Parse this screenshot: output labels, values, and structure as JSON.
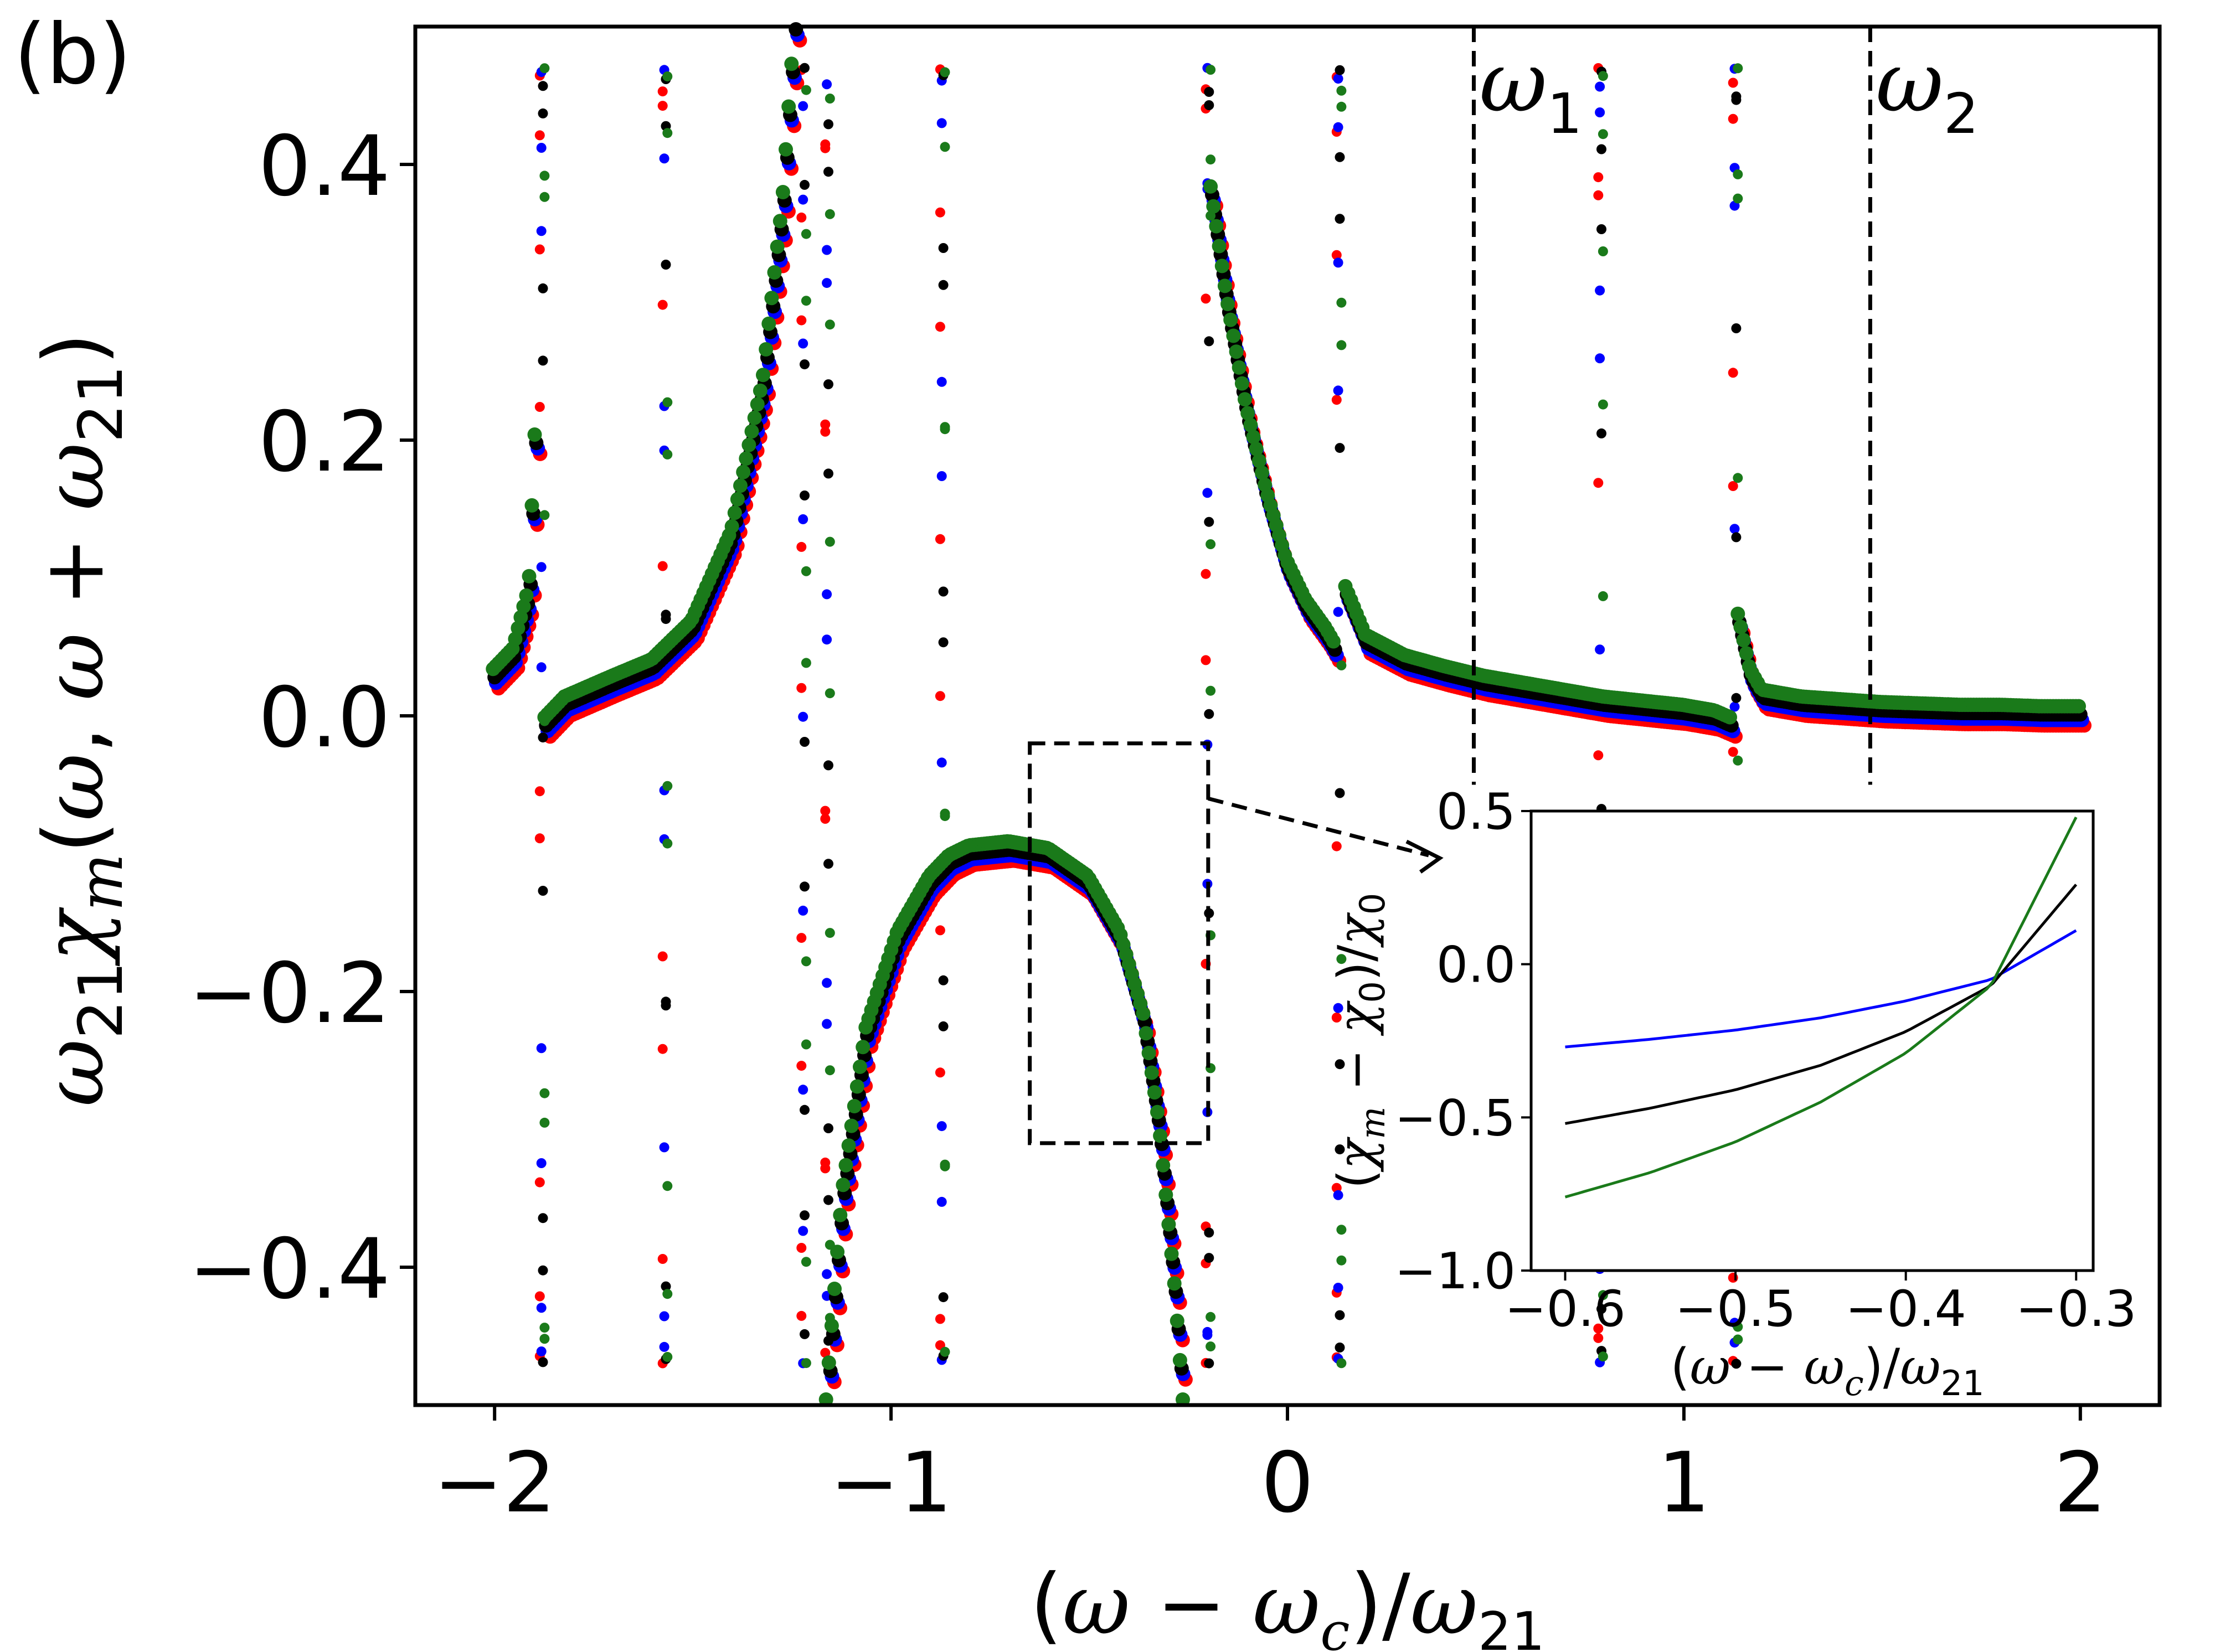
{
  "panel_label": "(b)",
  "chart_data": [
    {
      "type": "scatter",
      "role": "main",
      "xlabel": "(ω − ω_c)/ω_21",
      "ylabel": "ω_21 χ_m(ω, ω + ω_21)",
      "xlim": [
        -2.2,
        2.2
      ],
      "ylim": [
        -0.5,
        0.5
      ],
      "xticks": [
        -2,
        -1,
        0,
        1,
        2
      ],
      "xtick_labels": [
        "−2",
        "−1",
        "0",
        "1",
        "2"
      ],
      "yticks": [
        -0.4,
        -0.2,
        0.0,
        0.2,
        0.4
      ],
      "ytick_labels": [
        "−0.4",
        "−0.2",
        "0.0",
        "0.2",
        "0.4"
      ],
      "vlines": [
        {
          "x": 0.47,
          "label": "ω",
          "sub": "1",
          "style": "dashed"
        },
        {
          "x": 1.47,
          "label": "ω",
          "sub": "2",
          "style": "dashed"
        }
      ],
      "zoom_box": {
        "x": [
          -0.65,
          -0.2
        ],
        "y": [
          -0.31,
          -0.02
        ]
      },
      "series": [
        {
          "name": "red",
          "color": "#ff0000",
          "offset": -0.01,
          "shift": 0.01
        },
        {
          "name": "blue",
          "color": "#0000ff",
          "offset": -0.006,
          "shift": 0.004
        },
        {
          "name": "black",
          "color": "#000000",
          "offset": -0.002,
          "shift": 0.0
        },
        {
          "name": "green",
          "color": "#1a7a1a",
          "offset": 0.004,
          "shift": -0.004
        }
      ],
      "resonances": [
        -1.88,
        -1.57,
        -1.22,
        -1.16,
        -0.87,
        -0.2,
        0.13,
        0.79,
        1.13
      ],
      "segments": [
        {
          "x": [
            -2.0,
            -1.95,
            -1.91,
            -1.895
          ],
          "y": [
            0.03,
            0.045,
            0.09,
            0.2
          ]
        },
        {
          "x": [
            -1.87,
            -1.82,
            -1.7,
            -1.6,
            -1.5,
            -1.4,
            -1.32,
            -1.27,
            -1.24
          ],
          "y": [
            -0.005,
            0.01,
            0.025,
            0.037,
            0.065,
            0.13,
            0.24,
            0.37,
            0.5
          ]
        },
        {
          "x": [
            -1.16,
            -1.12,
            -1.06,
            -0.98,
            -0.9,
            -0.85,
            -0.8,
            -0.7,
            -0.6,
            -0.5,
            -0.42,
            -0.36,
            -0.32,
            -0.28,
            -0.26
          ],
          "y": [
            -0.5,
            -0.35,
            -0.23,
            -0.16,
            -0.12,
            -0.105,
            -0.098,
            -0.095,
            -0.1,
            -0.12,
            -0.16,
            -0.22,
            -0.3,
            -0.42,
            -0.5
          ]
        },
        {
          "x": [
            -0.19,
            -0.15,
            -0.1,
            -0.05,
            0.0,
            0.05,
            0.1,
            0.12
          ],
          "y": [
            0.38,
            0.3,
            0.22,
            0.16,
            0.11,
            0.08,
            0.06,
            0.05
          ]
        },
        {
          "x": [
            0.15,
            0.2,
            0.3,
            0.4,
            0.5,
            0.6,
            0.7,
            0.8,
            0.9,
            1.0,
            1.08,
            1.12
          ],
          "y": [
            0.09,
            0.055,
            0.04,
            0.032,
            0.025,
            0.02,
            0.015,
            0.01,
            0.007,
            0.004,
            0.0,
            -0.005
          ]
        },
        {
          "x": [
            1.14,
            1.17,
            1.2,
            1.3,
            1.4,
            1.5,
            1.6,
            1.7,
            1.8,
            1.9,
            2.0
          ],
          "y": [
            0.07,
            0.03,
            0.015,
            0.01,
            0.008,
            0.006,
            0.005,
            0.004,
            0.004,
            0.003,
            0.003
          ]
        }
      ]
    },
    {
      "type": "line",
      "role": "inset",
      "xlabel": "(ω − ω_c)/ω_21",
      "ylabel": "(χ_m − χ_0)/χ_0",
      "xlim": [
        -0.62,
        -0.29
      ],
      "ylim": [
        -1.0,
        0.5
      ],
      "xticks": [
        -0.6,
        -0.5,
        -0.4,
        -0.3
      ],
      "xtick_labels": [
        "−0.6",
        "−0.5",
        "−0.4",
        "−0.3"
      ],
      "yticks": [
        -1.0,
        -0.5,
        0.0,
        0.5
      ],
      "ytick_labels": [
        "−1.0",
        "−0.5",
        "0.0",
        "0.5"
      ],
      "series": [
        {
          "name": "blue",
          "color": "#0000ff",
          "x": [
            -0.6,
            -0.55,
            -0.5,
            -0.45,
            -0.4,
            -0.35,
            -0.3
          ],
          "y": [
            -0.27,
            -0.245,
            -0.215,
            -0.175,
            -0.12,
            -0.05,
            0.11
          ]
        },
        {
          "name": "black",
          "color": "#000000",
          "x": [
            -0.6,
            -0.55,
            -0.5,
            -0.45,
            -0.4,
            -0.35,
            -0.3
          ],
          "y": [
            -0.52,
            -0.47,
            -0.41,
            -0.33,
            -0.22,
            -0.07,
            0.26
          ]
        },
        {
          "name": "green",
          "color": "#1a7a1a",
          "x": [
            -0.6,
            -0.55,
            -0.5,
            -0.45,
            -0.4,
            -0.35,
            -0.3
          ],
          "y": [
            -0.76,
            -0.68,
            -0.58,
            -0.45,
            -0.29,
            -0.07,
            0.48
          ]
        }
      ]
    }
  ]
}
